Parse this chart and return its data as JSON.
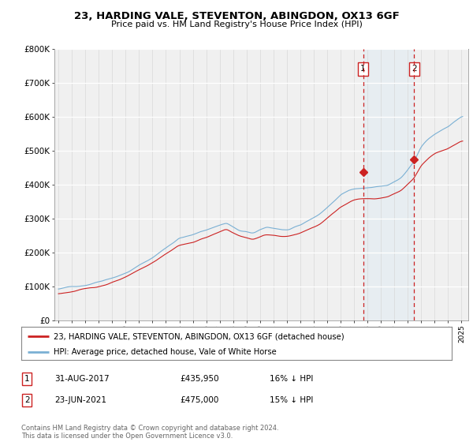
{
  "title": "23, HARDING VALE, STEVENTON, ABINGDON, OX13 6GF",
  "subtitle": "Price paid vs. HM Land Registry's House Price Index (HPI)",
  "ylim": [
    0,
    800000
  ],
  "yticks": [
    0,
    100000,
    200000,
    300000,
    400000,
    500000,
    600000,
    700000,
    800000
  ],
  "ytick_labels": [
    "£0",
    "£100K",
    "£200K",
    "£300K",
    "£400K",
    "£500K",
    "£600K",
    "£700K",
    "£800K"
  ],
  "hpi_color": "#7ab0d4",
  "price_color": "#cc2222",
  "vline_color": "#cc2222",
  "shade_color": "#d0e8f5",
  "marker1_year": 2017.67,
  "marker2_year": 2021.47,
  "marker1_price": 435950,
  "marker2_price": 475000,
  "marker1_label": "1",
  "marker2_label": "2",
  "marker1_date": "31-AUG-2017",
  "marker2_date": "23-JUN-2021",
  "marker1_pct": "16% ↓ HPI",
  "marker2_pct": "15% ↓ HPI",
  "legend_line1": "23, HARDING VALE, STEVENTON, ABINGDON, OX13 6GF (detached house)",
  "legend_line2": "HPI: Average price, detached house, Vale of White Horse",
  "footnote": "Contains HM Land Registry data © Crown copyright and database right 2024.\nThis data is licensed under the Open Government Licence v3.0.",
  "background_color": "#ffffff",
  "plot_bg_color": "#f0f0f0"
}
